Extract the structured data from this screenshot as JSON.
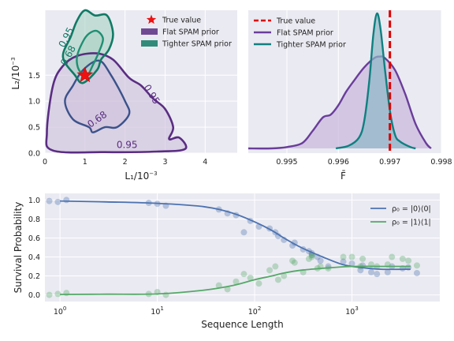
{
  "chart_data": [
    {
      "type": "contour",
      "xlabel": "L_1/10^-3",
      "ylabel": "L_2/10^-3",
      "xlim": [
        0,
        4.8
      ],
      "ylim": [
        0,
        2.75
      ],
      "xticks": [
        "0",
        "1",
        "2",
        "3",
        "4"
      ],
      "yticks": [
        "0.0",
        "0.5",
        "1.0",
        "1.5"
      ],
      "grid": true,
      "legend_position": "top-right",
      "legend": [
        "True value",
        "Flat SPAM prior",
        "Tighter SPAM prior"
      ],
      "true_value": {
        "x": 1.0,
        "y": 1.5,
        "color": "#ee1111"
      },
      "contour_labels": [
        {
          "text": "0.95",
          "series": "Tighter SPAM prior",
          "x": 0.6,
          "y": 2.2
        },
        {
          "text": "0.68",
          "series": "Tighter SPAM prior",
          "x": 0.65,
          "y": 1.85
        },
        {
          "text": "0.95",
          "series": "Flat SPAM prior",
          "x": 2.6,
          "y": 1.1
        },
        {
          "text": "0.68",
          "series": "Flat SPAM prior",
          "x": 1.35,
          "y": 0.6
        },
        {
          "text": "0.95",
          "series": "Flat SPAM prior",
          "x": 2.05,
          "y": 0.1
        }
      ],
      "series": [
        {
          "name": "Flat SPAM prior",
          "color": "#5a2d82",
          "fill": "#cbbcd9",
          "levels": [
            {
              "level": 0.95,
              "points": [
                [
                  0.2,
                  0.05
                ],
                [
                  0.05,
                  0.4
                ],
                [
                  0.2,
                  1.3
                ],
                [
                  0.45,
                  1.68
                ],
                [
                  0.8,
                  1.87
                ],
                [
                  1.3,
                  1.92
                ],
                [
                  1.7,
                  1.8
                ],
                [
                  2.1,
                  1.45
                ],
                [
                  2.4,
                  1.3
                ],
                [
                  2.7,
                  1.05
                ],
                [
                  3.0,
                  0.85
                ],
                [
                  3.2,
                  0.5
                ],
                [
                  3.1,
                  0.27
                ],
                [
                  3.35,
                  0.3
                ],
                [
                  3.5,
                  0.08
                ],
                [
                  2.8,
                  0.03
                ],
                [
                  1.5,
                  0.02
                ]
              ]
            },
            {
              "level": 0.68,
              "points": [
                [
                  1.1,
                  0.5
                ],
                [
                  0.7,
                  0.65
                ],
                [
                  0.5,
                  1.0
                ],
                [
                  0.7,
                  1.3
                ],
                [
                  0.95,
                  1.6
                ],
                [
                  1.35,
                  1.78
                ],
                [
                  1.65,
                  1.5
                ],
                [
                  2.0,
                  1.0
                ],
                [
                  2.1,
                  0.75
                ],
                [
                  1.8,
                  0.5
                ],
                [
                  1.5,
                  0.5
                ],
                [
                  1.2,
                  0.4
                ]
              ]
            }
          ]
        },
        {
          "name": "Tighter SPAM prior",
          "color": "#117a65",
          "fill": "#a3cfbf",
          "levels": [
            {
              "level": 0.95,
              "points": [
                [
                  0.45,
                  1.85
                ],
                [
                  0.65,
                  2.25
                ],
                [
                  0.8,
                  2.55
                ],
                [
                  1.0,
                  2.75
                ],
                [
                  1.25,
                  2.65
                ],
                [
                  1.55,
                  2.65
                ],
                [
                  1.7,
                  2.3
                ],
                [
                  1.6,
                  2.0
                ],
                [
                  1.4,
                  1.8
                ],
                [
                  1.3,
                  1.6
                ],
                [
                  0.95,
                  1.35
                ],
                [
                  0.75,
                  1.5
                ]
              ]
            },
            {
              "level": 0.68,
              "points": [
                [
                  0.85,
                  1.6
                ],
                [
                  0.8,
                  1.85
                ],
                [
                  0.95,
                  2.15
                ],
                [
                  1.1,
                  2.3
                ],
                [
                  1.3,
                  2.35
                ],
                [
                  1.45,
                  2.2
                ],
                [
                  1.35,
                  1.95
                ],
                [
                  1.2,
                  1.7
                ],
                [
                  1.05,
                  1.5
                ]
              ]
            }
          ]
        }
      ]
    },
    {
      "type": "density",
      "xlabel": "F̄",
      "xlim": [
        0.99425,
        0.998
      ],
      "xticks": [
        "0.995",
        "0.996",
        "0.997",
        "0.998"
      ],
      "legend_position": "top-left",
      "legend": [
        "True value",
        "Flat SPAM prior",
        "Tighter SPAM prior"
      ],
      "true_value": {
        "x": 0.997,
        "color": "#dd0000"
      },
      "series": [
        {
          "name": "Flat SPAM prior",
          "color": "#6a3d9a",
          "fill": "#c9b7dd",
          "x": [
            0.99425,
            0.9947,
            0.995,
            0.9953,
            0.9955,
            0.9957,
            0.99585,
            0.996,
            0.99615,
            0.9963,
            0.9965,
            0.9967,
            0.9968,
            0.9969,
            0.9971,
            0.9973,
            0.9975,
            0.9977,
            0.9978
          ],
          "y": [
            0.0,
            0.0,
            0.01,
            0.04,
            0.13,
            0.23,
            0.25,
            0.32,
            0.42,
            0.5,
            0.6,
            0.67,
            0.68,
            0.67,
            0.58,
            0.4,
            0.18,
            0.04,
            0.0
          ]
        },
        {
          "name": "Tighter SPAM prior",
          "color": "#0f8080",
          "fill": "#8fb8c6",
          "x": [
            0.99595,
            0.9962,
            0.9964,
            0.9965,
            0.9966,
            0.99668,
            0.99675,
            0.99682,
            0.9969,
            0.997,
            0.9971,
            0.9972,
            0.9974,
            0.9975
          ],
          "y": [
            0.0,
            0.02,
            0.08,
            0.2,
            0.5,
            0.85,
            1.0,
            0.88,
            0.6,
            0.28,
            0.1,
            0.05,
            0.01,
            0.0
          ]
        }
      ]
    },
    {
      "type": "line+scatter",
      "xlabel": "Sequence Length",
      "ylabel": "Survival Probability",
      "xscale": "log",
      "xlim": [
        0.7,
        8000
      ],
      "ylim": [
        -0.07,
        1.07
      ],
      "xticks": [
        "10^0",
        "10^1",
        "10^2",
        "10^3"
      ],
      "yticks": [
        "0.0",
        "0.2",
        "0.4",
        "0.6",
        "0.8",
        "1.0"
      ],
      "grid": true,
      "legend_position": "upper right",
      "legend": [
        "ρ₀ = |0⟩⟨0|",
        "ρ₀ = |1⟩⟨1|"
      ],
      "sequence_lengths": [
        1,
        10,
        50,
        100,
        150,
        200,
        300,
        400,
        500,
        700,
        1000,
        1500,
        2000,
        3000,
        4000
      ],
      "series": [
        {
          "name": "ρ₀ = |0⟩⟨0|",
          "color": "#4c72b0",
          "curve": [
            [
              1,
              0.99
            ],
            [
              3,
              0.98
            ],
            [
              10,
              0.965
            ],
            [
              30,
              0.93
            ],
            [
              60,
              0.86
            ],
            [
              100,
              0.77
            ],
            [
              150,
              0.68
            ],
            [
              200,
              0.6
            ],
            [
              300,
              0.5
            ],
            [
              500,
              0.4
            ],
            [
              800,
              0.32
            ],
            [
              1200,
              0.29
            ],
            [
              2000,
              0.27
            ],
            [
              4000,
              0.27
            ]
          ],
          "points": [
            [
              1,
              0.99
            ],
            [
              1,
              0.98
            ],
            [
              1,
              1.0
            ],
            [
              10,
              0.97
            ],
            [
              10,
              0.96
            ],
            [
              10,
              0.94
            ],
            [
              50,
              0.9
            ],
            [
              50,
              0.86
            ],
            [
              50,
              0.84
            ],
            [
              100,
              0.78
            ],
            [
              100,
              0.72
            ],
            [
              100,
              0.66
            ],
            [
              150,
              0.7
            ],
            [
              150,
              0.62
            ],
            [
              200,
              0.66
            ],
            [
              200,
              0.58
            ],
            [
              200,
              0.52
            ],
            [
              300,
              0.55
            ],
            [
              300,
              0.48
            ],
            [
              300,
              0.44
            ],
            [
              400,
              0.46
            ],
            [
              400,
              0.4
            ],
            [
              500,
              0.42
            ],
            [
              500,
              0.36
            ],
            [
              700,
              0.35
            ],
            [
              700,
              0.3
            ],
            [
              1000,
              0.33
            ],
            [
              1000,
              0.26
            ],
            [
              1500,
              0.31
            ],
            [
              1500,
              0.24
            ],
            [
              2000,
              0.3
            ],
            [
              2000,
              0.22
            ],
            [
              3000,
              0.28
            ],
            [
              3000,
              0.24
            ],
            [
              4000,
              0.29
            ],
            [
              4000,
              0.23
            ]
          ]
        },
        {
          "name": "ρ₀ = |1⟩⟨1|",
          "color": "#55a868",
          "curve": [
            [
              1,
              0.005
            ],
            [
              3,
              0.007
            ],
            [
              10,
              0.01
            ],
            [
              30,
              0.05
            ],
            [
              60,
              0.1
            ],
            [
              100,
              0.16
            ],
            [
              150,
              0.2
            ],
            [
              200,
              0.23
            ],
            [
              300,
              0.26
            ],
            [
              500,
              0.28
            ],
            [
              1000,
              0.3
            ],
            [
              2000,
              0.3
            ],
            [
              4000,
              0.3
            ]
          ],
          "points": [
            [
              1,
              0.0
            ],
            [
              1,
              0.01
            ],
            [
              1,
              0.02
            ],
            [
              10,
              0.01
            ],
            [
              10,
              0.03
            ],
            [
              10,
              0.0
            ],
            [
              50,
              0.1
            ],
            [
              50,
              0.06
            ],
            [
              50,
              0.14
            ],
            [
              100,
              0.18
            ],
            [
              100,
              0.12
            ],
            [
              100,
              0.22
            ],
            [
              150,
              0.26
            ],
            [
              150,
              0.16
            ],
            [
              200,
              0.3
            ],
            [
              200,
              0.2
            ],
            [
              200,
              0.36
            ],
            [
              300,
              0.34
            ],
            [
              300,
              0.24
            ],
            [
              300,
              0.4
            ],
            [
              400,
              0.38
            ],
            [
              400,
              0.28
            ],
            [
              500,
              0.42
            ],
            [
              500,
              0.3
            ],
            [
              700,
              0.4
            ],
            [
              700,
              0.28
            ],
            [
              1000,
              0.4
            ],
            [
              1000,
              0.3
            ],
            [
              1500,
              0.38
            ],
            [
              1500,
              0.32
            ],
            [
              2000,
              0.4
            ],
            [
              2000,
              0.3
            ],
            [
              3000,
              0.38
            ],
            [
              3000,
              0.32
            ],
            [
              4000,
              0.36
            ],
            [
              4000,
              0.31
            ]
          ]
        }
      ]
    }
  ]
}
